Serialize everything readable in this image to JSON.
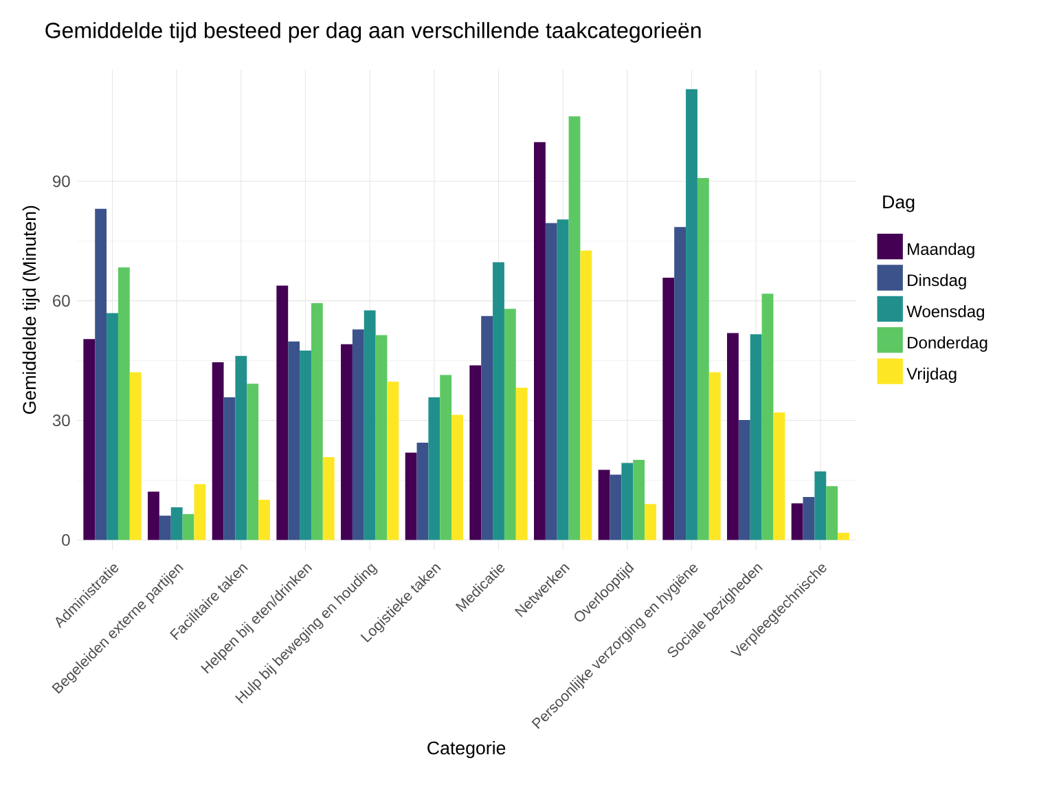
{
  "chart_data": {
    "type": "bar",
    "title": "Gemiddelde tijd besteed per dag aan verschillende taakcategorieën",
    "xlabel": "Categorie",
    "ylabel": "Gemiddelde tijd (Minuten)",
    "legend_title": "Dag",
    "categories": [
      "Administratie",
      "Begeleiden externe partijen",
      "Facilitaire taken",
      "Helpen bij eten/drinken",
      "Hulp bij beweging en houding",
      "Logistieke taken",
      "Medicatie",
      "Netwerken",
      "Overlooptijd",
      "Persoonlijke verzorging en hygiëne",
      "Sociale bezigheden",
      "Verpleegtechnische"
    ],
    "series": [
      {
        "name": "Maandag",
        "color": "#440154",
        "values": [
          50.4,
          12.1,
          44.6,
          63.8,
          49.1,
          21.9,
          43.8,
          99.8,
          17.6,
          65.8,
          51.9,
          9.2
        ]
      },
      {
        "name": "Dinsdag",
        "color": "#3b528b",
        "values": [
          83.1,
          6.1,
          35.8,
          49.8,
          52.8,
          24.4,
          56.2,
          79.5,
          16.4,
          78.5,
          30.1,
          10.8
        ]
      },
      {
        "name": "Woensdag",
        "color": "#21908c",
        "values": [
          56.9,
          8.2,
          46.2,
          47.5,
          57.6,
          35.8,
          69.7,
          80.4,
          19.3,
          113.1,
          51.6,
          17.2
        ]
      },
      {
        "name": "Donderdag",
        "color": "#5dc863",
        "values": [
          68.4,
          6.5,
          39.2,
          59.4,
          51.4,
          41.4,
          58.0,
          106.3,
          20.1,
          90.8,
          61.8,
          13.5
        ]
      },
      {
        "name": "Vrijdag",
        "color": "#fde725",
        "values": [
          42.1,
          14.0,
          10.1,
          20.8,
          39.7,
          31.4,
          38.2,
          72.6,
          9.0,
          42.1,
          32.0,
          1.8
        ]
      }
    ],
    "ylim": [
      -2.5,
      118
    ],
    "yticks": [
      0,
      30,
      60,
      90
    ],
    "grid": true,
    "legend": "right"
  }
}
